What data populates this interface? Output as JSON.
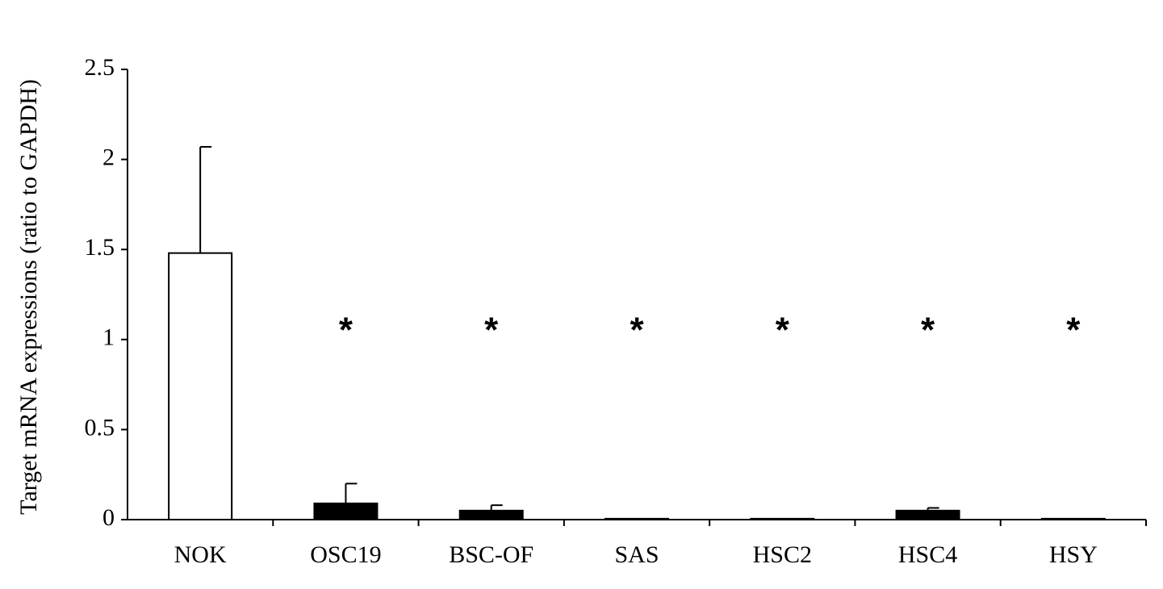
{
  "chart_data": {
    "type": "bar",
    "y_label": "Target mRNA expressions (ratio to GAPDH)",
    "categories": [
      "NOK",
      "OSC19",
      "BSC-OF",
      "SAS",
      "HSC2",
      "HSC4",
      "HSY"
    ],
    "values": [
      1.48,
      0.09,
      0.05,
      0.005,
      0.005,
      0.05,
      0.005
    ],
    "errors": [
      0.59,
      0.11,
      0.03,
      0,
      0,
      0.015,
      0
    ],
    "colors": [
      "#ffffff",
      "#000000",
      "#000000",
      "#000000",
      "#000000",
      "#000000",
      "#000000"
    ],
    "markers": [
      null,
      "*",
      "*",
      "*",
      "*",
      "*",
      "*"
    ],
    "ylim": [
      0,
      2.5
    ],
    "yticks": [
      0,
      0.5,
      1,
      1.5,
      2,
      2.5
    ],
    "grid": false
  }
}
